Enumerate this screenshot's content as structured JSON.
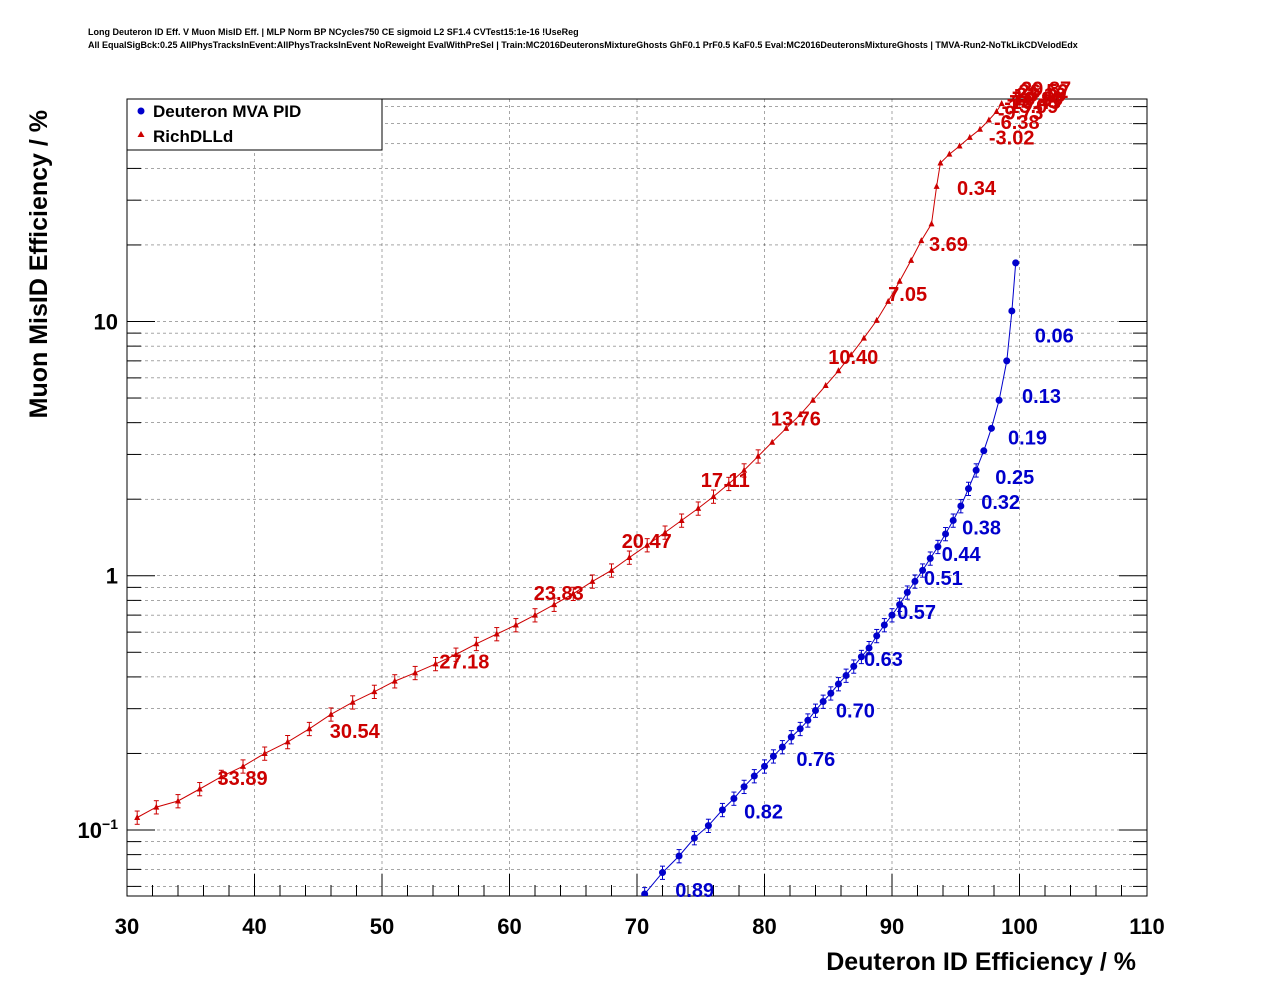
{
  "title_lines": [
    "Long Deuteron ID Eff. V Muon MisID Eff. | MLP Norm BP NCycles750 CE sigmoid L2 SF1.4 CVTest15:1e-16 !UseReg",
    "All EqualSigBck:0.25 AllPhysTracksInEvent:AllPhysTracksInEvent NoReweight EvalWithPreSel | Train:MC2016DeuteronsMixtureGhosts GhF0.1 PrF0.5 KaF0.5 Eval:MC2016DeuteronsMixtureGhosts | TMVA-Run2-NoTkLikCDVelodEdx"
  ],
  "chart_data": {
    "type": "line",
    "xlabel": "Deuteron ID Efficiency / %",
    "ylabel": "Muon MisID Efficiency / %",
    "xlim": [
      30,
      110
    ],
    "ylim": [
      0.055,
      75
    ],
    "yscale": "log",
    "grid": true,
    "legend_position": "top-left",
    "x_ticks": [
      "30",
      "40",
      "50",
      "60",
      "70",
      "80",
      "90",
      "100",
      "110"
    ],
    "y_tick_labels": [
      {
        "value": 10,
        "label": "10"
      },
      {
        "value": 1,
        "label": "1"
      },
      {
        "value": 0.1,
        "label": "10",
        "sup": "−1"
      }
    ],
    "series": [
      {
        "name": "Deuteron MVA PID",
        "color": "#0000cc",
        "marker": "circle",
        "x": [
          70.6,
          72.0,
          73.3,
          74.5,
          75.6,
          76.7,
          77.6,
          78.4,
          79.2,
          80.0,
          80.7,
          81.4,
          82.1,
          82.8,
          83.4,
          84.0,
          84.6,
          85.2,
          85.8,
          86.4,
          87.0,
          87.6,
          88.2,
          88.8,
          89.4,
          90.0,
          90.6,
          91.2,
          91.8,
          92.4,
          93.0,
          93.6,
          94.2,
          94.8,
          95.4,
          96.0,
          96.6,
          97.2,
          97.8,
          98.4,
          99.0,
          99.4,
          99.7
        ],
        "y": [
          0.056,
          0.068,
          0.079,
          0.093,
          0.104,
          0.12,
          0.133,
          0.148,
          0.163,
          0.178,
          0.195,
          0.212,
          0.232,
          0.25,
          0.27,
          0.295,
          0.32,
          0.345,
          0.375,
          0.405,
          0.44,
          0.48,
          0.52,
          0.58,
          0.64,
          0.7,
          0.77,
          0.86,
          0.95,
          1.05,
          1.17,
          1.3,
          1.46,
          1.65,
          1.88,
          2.2,
          2.6,
          3.1,
          3.8,
          4.9,
          7.0,
          11.0,
          17.0
        ],
        "cut_labels": [
          {
            "x": 73.0,
            "y": 0.058,
            "text": "0.89"
          },
          {
            "x": 78.4,
            "y": 0.118,
            "text": "0.82"
          },
          {
            "x": 82.5,
            "y": 0.19,
            "text": "0.76"
          },
          {
            "x": 85.6,
            "y": 0.295,
            "text": "0.70"
          },
          {
            "x": 87.8,
            "y": 0.47,
            "text": "0.63"
          },
          {
            "x": 90.4,
            "y": 0.72,
            "text": "0.57"
          },
          {
            "x": 92.5,
            "y": 0.98,
            "text": "0.51"
          },
          {
            "x": 93.9,
            "y": 1.22,
            "text": "0.44"
          },
          {
            "x": 95.5,
            "y": 1.55,
            "text": "0.38"
          },
          {
            "x": 97.0,
            "y": 1.95,
            "text": "0.32"
          },
          {
            "x": 98.1,
            "y": 2.45,
            "text": "0.25"
          },
          {
            "x": 99.1,
            "y": 3.5,
            "text": "0.19"
          },
          {
            "x": 100.2,
            "y": 5.1,
            "text": "0.13"
          },
          {
            "x": 101.2,
            "y": 8.8,
            "text": "0.06"
          }
        ]
      },
      {
        "name": "RichDLLd",
        "color": "#cc0000",
        "marker": "triangle",
        "x": [
          30.8,
          32.3,
          34.0,
          35.7,
          37.4,
          39.1,
          40.8,
          42.6,
          44.3,
          46.0,
          47.7,
          49.4,
          51.0,
          52.6,
          54.2,
          55.8,
          57.4,
          59.0,
          60.5,
          62.0,
          63.5,
          65.0,
          66.5,
          68.0,
          69.4,
          70.8,
          72.2,
          73.5,
          74.8,
          76.0,
          77.2,
          78.4,
          79.5,
          80.6,
          81.7,
          82.8,
          83.8,
          84.8,
          85.8,
          86.8,
          87.8,
          88.8,
          89.7,
          90.6,
          91.5,
          92.3,
          93.1,
          93.5,
          93.8,
          94.5,
          95.3,
          96.1,
          96.9,
          97.6,
          98.2,
          98.6
        ],
        "y": [
          0.112,
          0.123,
          0.13,
          0.145,
          0.162,
          0.178,
          0.2,
          0.222,
          0.25,
          0.285,
          0.318,
          0.35,
          0.385,
          0.415,
          0.45,
          0.49,
          0.54,
          0.59,
          0.64,
          0.7,
          0.77,
          0.85,
          0.95,
          1.05,
          1.18,
          1.32,
          1.48,
          1.65,
          1.84,
          2.05,
          2.3,
          2.6,
          2.95,
          3.35,
          3.8,
          4.3,
          4.9,
          5.6,
          6.4,
          7.4,
          8.6,
          10.1,
          12.0,
          14.4,
          17.4,
          20.8,
          24.2,
          34.0,
          42.0,
          45.5,
          49.0,
          53.0,
          57.0,
          62.0,
          67.0,
          72.0
        ],
        "cut_labels": [
          {
            "x": 37.1,
            "y": 0.16,
            "text": "33.89"
          },
          {
            "x": 45.9,
            "y": 0.245,
            "text": "30.54"
          },
          {
            "x": 54.5,
            "y": 0.46,
            "text": "27.18"
          },
          {
            "x": 61.9,
            "y": 0.855,
            "text": "23.83"
          },
          {
            "x": 68.8,
            "y": 1.37,
            "text": "20.47"
          },
          {
            "x": 75.0,
            "y": 2.38,
            "text": "17.11"
          },
          {
            "x": 80.5,
            "y": 4.15,
            "text": "13.76"
          },
          {
            "x": 85.0,
            "y": 7.25,
            "text": "10.40"
          },
          {
            "x": 89.7,
            "y": 12.8,
            "text": "7.05"
          },
          {
            "x": 92.9,
            "y": 20.2,
            "text": "3.69"
          },
          {
            "x": 95.1,
            "y": 33.5,
            "text": "0.34"
          },
          {
            "x": 97.6,
            "y": 53.0,
            "text": "-3.02"
          },
          {
            "x": 98.0,
            "y": 61.0,
            "text": "-6.38"
          },
          {
            "x": 98.3,
            "y": 66.5,
            "text": "-9.73"
          },
          {
            "x": 98.6,
            "y": 70.5,
            "text": "-13.09"
          },
          {
            "x": 98.8,
            "y": 73.0,
            "text": "-16.45"
          },
          {
            "x": 99.0,
            "y": 75.5,
            "text": "-19.80"
          },
          {
            "x": 99.2,
            "y": 78.0,
            "text": "-23.16"
          },
          {
            "x": 99.4,
            "y": 80.5,
            "text": "-26.52"
          },
          {
            "x": 99.6,
            "y": 82.5,
            "text": "-29.87"
          }
        ]
      }
    ]
  }
}
